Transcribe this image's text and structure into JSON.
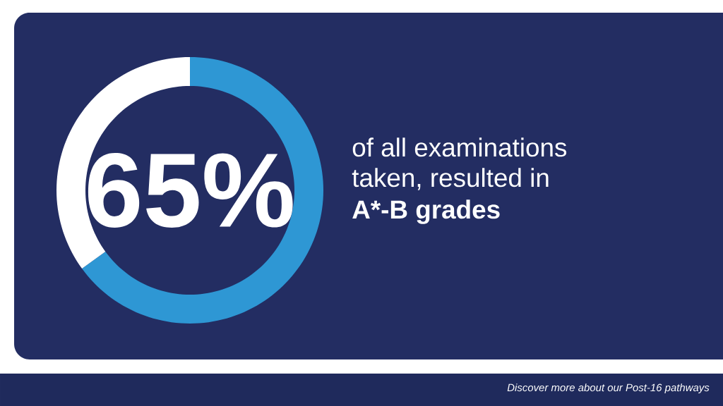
{
  "chart_data": {
    "type": "donut",
    "categories": [
      null,
      null
    ],
    "values": [
      65,
      35
    ],
    "colors": [
      "#2e97d4",
      "#ffffff"
    ],
    "value_labels": [
      "65%",
      null
    ],
    "annotations": [
      "of all examinations",
      "taken, resulted in",
      "A*-B grades",
      "Discover more about our Post-16 pathways"
    ]
  }
}
